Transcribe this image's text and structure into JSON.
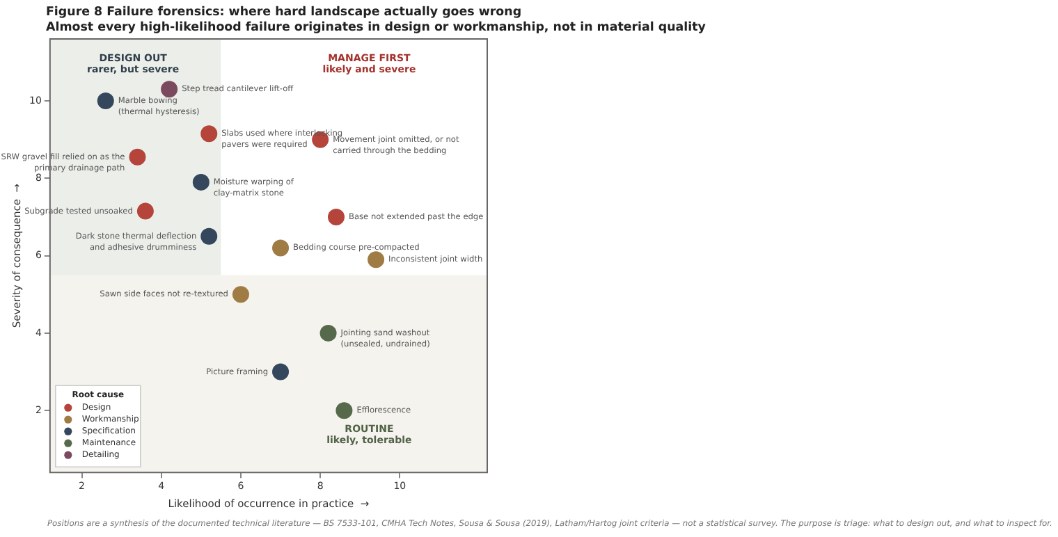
{
  "chart_data": {
    "type": "scatter",
    "title": "Figure 8  Failure forensics: where hard landscape actually goes wrong",
    "subtitle": "Almost every high-likelihood failure originates in design or workmanship, not in material quality",
    "xlabel": "Likelihood of occurrence in practice  →",
    "ylabel": "Severity of consequence  →",
    "legend_title": "Root cause",
    "legend": "bottom left",
    "marker": "circle",
    "grid": false,
    "xlim": [
      1.2,
      12.2
    ],
    "ylim": [
      0.4,
      11.6
    ],
    "xticks": [
      2,
      4,
      6,
      8,
      10
    ],
    "yticks": [
      2,
      4,
      6,
      8,
      10
    ],
    "bands": [
      {
        "axis": "x",
        "from": 1.2,
        "to": 5.5,
        "color": "#eceeea"
      },
      {
        "axis": "y",
        "from": 0.4,
        "to": 5.5,
        "color": "#f5f3ed"
      }
    ],
    "series": [
      {
        "name": "Design",
        "color": "#b5443a",
        "x": [
          5.2,
          8.0,
          3.4,
          3.6,
          8.4
        ],
        "values": [
          9.15,
          9.0,
          8.55,
          7.15,
          7.0
        ],
        "value_labels": [
          "Slabs used where interlocking\npavers were required",
          "Movement joint omitted, or not\ncarried through the bedding",
          "SRW gravel fill relied on as the\nprimary drainage path",
          "Subgrade tested unsoaked",
          "Base not extended past the edge"
        ]
      },
      {
        "name": "Workmanship",
        "color": "#a07c45",
        "x": [
          7.0,
          9.4,
          6.0
        ],
        "values": [
          6.2,
          5.9,
          5.0
        ],
        "value_labels": [
          "Bedding course pre-compacted",
          "Inconsistent joint width",
          "Sawn side faces not re-textured"
        ]
      },
      {
        "name": "Specification",
        "color": "#34475c",
        "x": [
          2.6,
          5.0,
          5.2,
          7.0
        ],
        "values": [
          10.0,
          7.9,
          6.5,
          3.0
        ],
        "value_labels": [
          "Marble bowing\n(thermal hysteresis)",
          "Moisture warping of\nclay-matrix stone",
          "Dark stone thermal deflection\nand adhesive drumminess",
          "Picture framing"
        ]
      },
      {
        "name": "Maintenance",
        "color": "#56694b",
        "x": [
          8.2,
          8.6
        ],
        "values": [
          4.0,
          2.0
        ],
        "value_labels": [
          "Jointing sand washout\n(unsealed, undrained)",
          "Efflorescence"
        ]
      },
      {
        "name": "Detailing",
        "color": "#7b4a5f",
        "x": [
          4.2
        ],
        "values": [
          10.3
        ],
        "value_labels": [
          "Step tread cantilever lift-off"
        ]
      }
    ],
    "annotations": [
      "DESIGN OUT\nrarer, but severe",
      "MANAGE FIRST\nlikely and severe",
      "ROUTINE\nlikely, tolerable",
      "Positions are a synthesis of the documented technical literature — BS 7533-101, CMHA Tech Notes, Sousa & Sousa (2019), Latham/Hartog joint criteria — not a statistical survey. The purpose is triage: what to design out, and what to inspect for."
    ]
  }
}
